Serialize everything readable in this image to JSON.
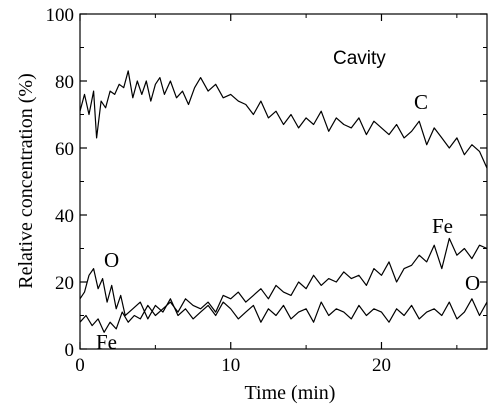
{
  "chart_data": {
    "type": "line",
    "title": "",
    "xlabel": "Time (min)",
    "ylabel": "Relative concentration (%)",
    "xlim": [
      0,
      27
    ],
    "ylim": [
      0,
      100
    ],
    "x_ticks": [
      "0",
      "10",
      "20"
    ],
    "y_ticks": [
      "0",
      "20",
      "40",
      "60",
      "80",
      "100"
    ],
    "annotation": "Cavity",
    "grid": false,
    "series": [
      {
        "name": "C",
        "x": [
          0,
          0.3,
          0.6,
          0.9,
          1.1,
          1.4,
          1.7,
          2.0,
          2.3,
          2.6,
          2.9,
          3.2,
          3.5,
          3.8,
          4.1,
          4.4,
          4.7,
          5.0,
          5.3,
          5.6,
          6.0,
          6.4,
          6.8,
          7.2,
          7.6,
          8.0,
          8.5,
          9.0,
          9.5,
          10.0,
          10.5,
          11.0,
          11.5,
          12.0,
          12.5,
          13.0,
          13.5,
          14.0,
          14.5,
          15.0,
          15.5,
          16.0,
          16.5,
          17.0,
          17.5,
          18.0,
          18.5,
          19.0,
          19.5,
          20.0,
          20.5,
          21.0,
          21.5,
          22.0,
          22.5,
          23.0,
          23.5,
          24.0,
          24.5,
          25.0,
          25.5,
          26.0,
          26.5,
          27.0
        ],
        "y": [
          71,
          76,
          70,
          77,
          63,
          74,
          72,
          77,
          76,
          79,
          78,
          83,
          75,
          80,
          76,
          80,
          74,
          79,
          81,
          76,
          80,
          75,
          77,
          73,
          78,
          81,
          77,
          79,
          75,
          76,
          74,
          73,
          70,
          74,
          69,
          71,
          67,
          70,
          66,
          69,
          67,
          71,
          65,
          69,
          67,
          66,
          69,
          64,
          68,
          66,
          64,
          67,
          63,
          65,
          68,
          61,
          66,
          63,
          60,
          63,
          58,
          61,
          59,
          54
        ]
      },
      {
        "name": "Fe",
        "x": [
          0,
          0.4,
          0.8,
          1.2,
          1.6,
          2.0,
          2.4,
          2.8,
          3.2,
          3.6,
          4.0,
          4.5,
          5.0,
          5.5,
          6.0,
          6.5,
          7.0,
          7.5,
          8.0,
          8.5,
          9.0,
          9.5,
          10.0,
          10.5,
          11.0,
          11.5,
          12.0,
          12.5,
          13.0,
          13.5,
          14.0,
          14.5,
          15.0,
          15.5,
          16.0,
          16.5,
          17.0,
          17.5,
          18.0,
          18.5,
          19.0,
          19.5,
          20.0,
          20.5,
          21.0,
          21.5,
          22.0,
          22.5,
          23.0,
          23.5,
          24.0,
          24.5,
          25.0,
          25.5,
          26.0,
          26.5,
          27.0
        ],
        "y": [
          8,
          10,
          7,
          9,
          5,
          8,
          6,
          11,
          8,
          10,
          9,
          13,
          10,
          12,
          14,
          11,
          15,
          13,
          12,
          14,
          11,
          16,
          15,
          17,
          14,
          16,
          18,
          15,
          19,
          17,
          16,
          20,
          18,
          22,
          19,
          21,
          20,
          23,
          21,
          22,
          19,
          24,
          22,
          26,
          20,
          24,
          25,
          28,
          26,
          31,
          24,
          33,
          28,
          30,
          27,
          31,
          30
        ]
      },
      {
        "name": "O",
        "x": [
          0,
          0.3,
          0.6,
          0.9,
          1.2,
          1.5,
          1.8,
          2.1,
          2.4,
          2.7,
          3.0,
          3.5,
          4.0,
          4.5,
          5.0,
          5.5,
          6.0,
          6.5,
          7.0,
          7.5,
          8.0,
          8.5,
          9.0,
          9.5,
          10.0,
          10.5,
          11.0,
          11.5,
          12.0,
          12.5,
          13.0,
          13.5,
          14.0,
          14.5,
          15.0,
          15.5,
          16.0,
          16.5,
          17.0,
          17.5,
          18.0,
          18.5,
          19.0,
          19.5,
          20.0,
          20.5,
          21.0,
          21.5,
          22.0,
          22.5,
          23.0,
          23.5,
          24.0,
          24.5,
          25.0,
          25.5,
          26.0,
          26.5,
          27.0
        ],
        "y": [
          15,
          17,
          22,
          24,
          18,
          21,
          14,
          19,
          12,
          16,
          10,
          12,
          14,
          9,
          13,
          11,
          15,
          10,
          12,
          9,
          11,
          13,
          10,
          14,
          12,
          9,
          11,
          13,
          8,
          12,
          10,
          13,
          9,
          11,
          12,
          8,
          14,
          10,
          12,
          11,
          9,
          13,
          10,
          12,
          11,
          8,
          12,
          10,
          13,
          9,
          11,
          12,
          10,
          14,
          9,
          11,
          15,
          10,
          14
        ]
      }
    ]
  }
}
